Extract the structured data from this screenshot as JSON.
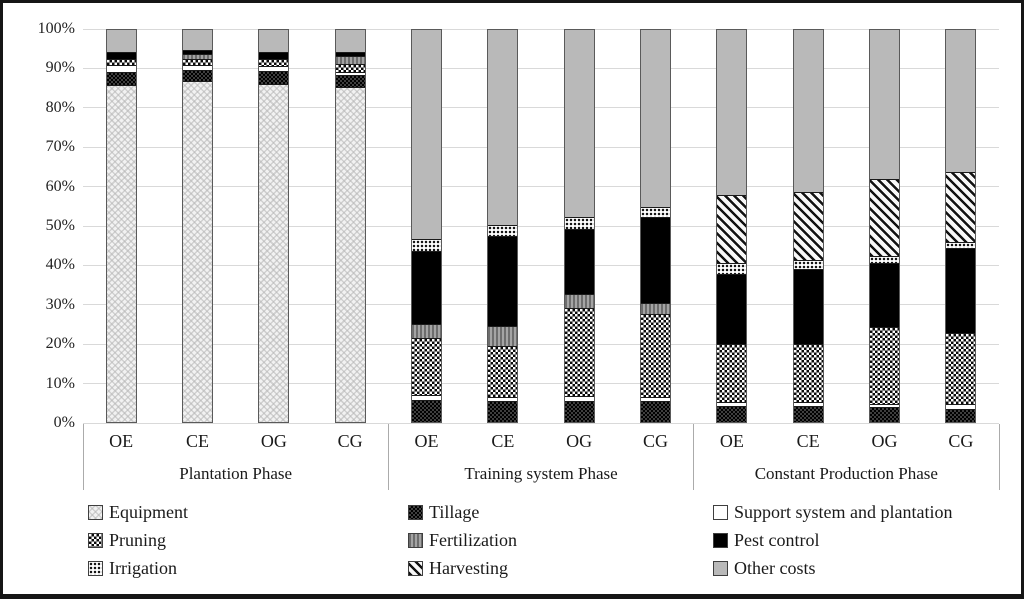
{
  "chart_data": {
    "type": "bar",
    "subtype": "stacked-100-percent",
    "title": "",
    "xlabel": "",
    "ylabel": "",
    "grid": true,
    "y_axis": {
      "min": 0,
      "max": 100,
      "unit": "%",
      "ticks": [
        "100%",
        "90%",
        "80%",
        "70%",
        "60%",
        "50%",
        "40%",
        "30%",
        "20%",
        "10%",
        "0%"
      ]
    },
    "series_order": [
      "equipment",
      "tillage",
      "support",
      "pruning",
      "fertilization",
      "pest",
      "irrigation",
      "harvesting",
      "other"
    ],
    "series_labels": {
      "equipment": "Equipment",
      "tillage": "Tillage",
      "support": "Support system and plantation",
      "pruning": "Pruning",
      "fertilization": "Fertilization",
      "pest": "Pest control",
      "irrigation": "Irrigation",
      "harvesting": "Harvesting",
      "other": "Other costs"
    },
    "series_patterns": {
      "equipment": "light-gray-crosshatch",
      "tillage": "dark-small-checker",
      "support": "white",
      "pruning": "black-white-checkerboard",
      "fertilization": "gray-vertical-stripes",
      "pest": "solid-black",
      "irrigation": "dot-grid",
      "harvesting": "black-diagonal-stripes",
      "other": "solid-gray"
    },
    "legend_rows": [
      [
        "equipment",
        "tillage",
        "support"
      ],
      [
        "pruning",
        "fertilization",
        "pest"
      ],
      [
        "irrigation",
        "harvesting",
        "other"
      ]
    ],
    "groups": [
      {
        "label": "Plantation Phase",
        "bars": [
          {
            "label": "OE",
            "values": {
              "equipment": 86.8,
              "tillage": 3.0,
              "support": 1.6,
              "pruning": 1.3,
              "fertilization": 0,
              "pest": 1.5,
              "irrigation": 0,
              "harvesting": 0,
              "other": 5.8
            }
          },
          {
            "label": "CE",
            "values": {
              "equipment": 88.0,
              "tillage": 2.8,
              "support": 1.0,
              "pruning": 1.3,
              "fertilization": 0.9,
              "pest": 0.9,
              "irrigation": 0,
              "harvesting": 0,
              "other": 5.1
            }
          },
          {
            "label": "OG",
            "values": {
              "equipment": 87.2,
              "tillage": 3.0,
              "support": 1.0,
              "pruning": 1.5,
              "fertilization": 0,
              "pest": 1.6,
              "irrigation": 0,
              "harvesting": 0,
              "other": 5.7
            }
          },
          {
            "label": "CG",
            "values": {
              "equipment": 86.6,
              "tillage": 2.9,
              "support": 0.5,
              "pruning": 1.7,
              "fertilization": 1.8,
              "pest": 0.8,
              "irrigation": 0,
              "harvesting": 0,
              "other": 5.7
            }
          }
        ]
      },
      {
        "label": "Training system Phase",
        "bars": [
          {
            "label": "OE",
            "values": {
              "equipment": 0,
              "tillage": 5.5,
              "support": 0.9,
              "pruning": 14.7,
              "fertilization": 3.3,
              "pest": 18.7,
              "irrigation": 2.8,
              "harvesting": 0,
              "other": 54.1
            }
          },
          {
            "label": "CE",
            "values": {
              "equipment": 0,
              "tillage": 5.1,
              "support": 0.8,
              "pruning": 13.1,
              "fertilization": 4.9,
              "pest": 22.9,
              "irrigation": 2.7,
              "harvesting": 0,
              "other": 50.5
            }
          },
          {
            "label": "OG",
            "values": {
              "equipment": 0,
              "tillage": 5.3,
              "support": 0.9,
              "pruning": 22.6,
              "fertilization": 3.4,
              "pest": 16.5,
              "irrigation": 2.9,
              "harvesting": 0,
              "other": 48.4
            }
          },
          {
            "label": "CG",
            "values": {
              "equipment": 0,
              "tillage": 5.1,
              "support": 0.8,
              "pruning": 21.2,
              "fertilization": 2.7,
              "pest": 22.1,
              "irrigation": 2.2,
              "harvesting": 0,
              "other": 45.9
            }
          }
        ]
      },
      {
        "label": "Constant Production Phase",
        "bars": [
          {
            "label": "OE",
            "values": {
              "equipment": 0,
              "tillage": 4.0,
              "support": 0.7,
              "pruning": 14.8,
              "fertilization": 0,
              "pest": 17.9,
              "irrigation": 2.4,
              "harvesting": 17.5,
              "other": 42.7
            }
          },
          {
            "label": "CE",
            "values": {
              "equipment": 0,
              "tillage": 3.8,
              "support": 0.8,
              "pruning": 14.9,
              "fertilization": 0,
              "pest": 19.0,
              "irrigation": 2.1,
              "harvesting": 17.5,
              "other": 41.9
            }
          },
          {
            "label": "OG",
            "values": {
              "equipment": 0,
              "tillage": 3.6,
              "support": 0.6,
              "pruning": 19.7,
              "fertilization": 0,
              "pest": 16.3,
              "irrigation": 1.4,
              "harvesting": 19.9,
              "other": 38.5
            }
          },
          {
            "label": "CG",
            "values": {
              "equipment": 0,
              "tillage": 3.2,
              "support": 1.0,
              "pruning": 18.2,
              "fertilization": 0,
              "pest": 21.6,
              "irrigation": 1.3,
              "harvesting": 18.0,
              "other": 36.7
            }
          }
        ]
      }
    ],
    "colors": {
      "gridline": "#d9d9d9",
      "other_costs_fill": "#b9b9b9",
      "pest_control_fill": "#000000",
      "frame_border": "#151515"
    }
  }
}
